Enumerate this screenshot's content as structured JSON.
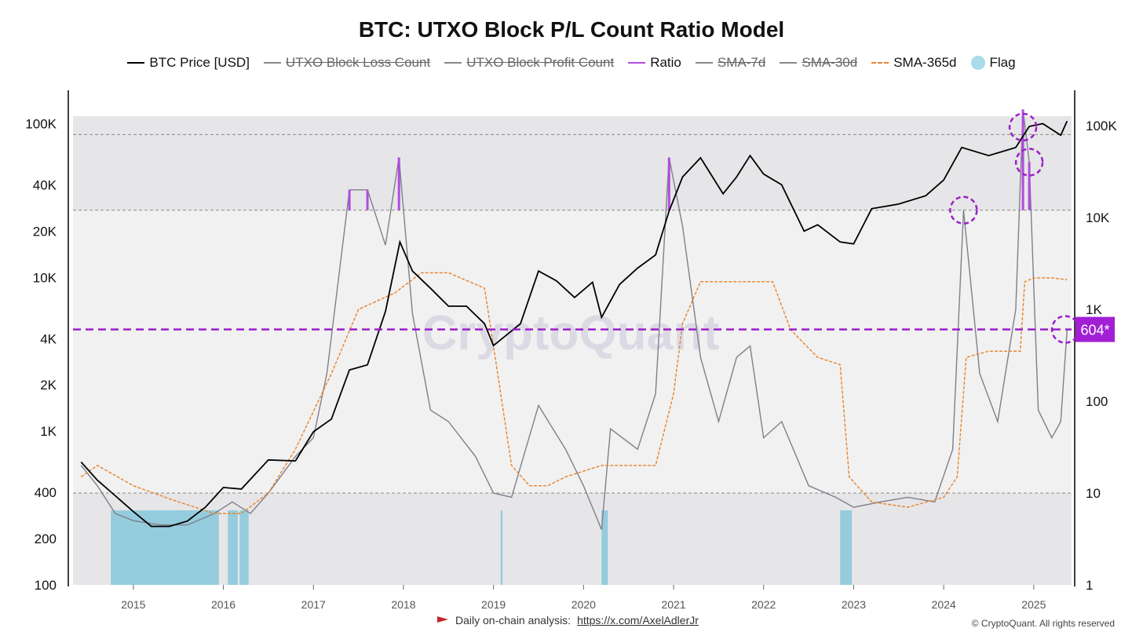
{
  "title": "BTC: UTXO Block P/L Count Ratio Model",
  "legend": [
    {
      "label": "BTC Price [USD]",
      "style": "line",
      "color": "#000000",
      "struck": false
    },
    {
      "label": "UTXO Block Loss Count",
      "style": "line",
      "color": "#888888",
      "struck": true
    },
    {
      "label": "UTXO Block Profit Count",
      "style": "line",
      "color": "#888888",
      "struck": true
    },
    {
      "label": "Ratio",
      "style": "line",
      "color": "#b24bdb",
      "struck": false
    },
    {
      "label": "SMA-7d",
      "style": "line",
      "color": "#888888",
      "struck": true
    },
    {
      "label": "SMA-30d",
      "style": "line",
      "color": "#888888",
      "struck": true
    },
    {
      "label": "SMA-365d",
      "style": "dash",
      "color": "#e8822a",
      "struck": false
    },
    {
      "label": "Flag",
      "style": "dot",
      "color": "#a9dbe9",
      "struck": false
    }
  ],
  "watermark": "CryptoQuant",
  "threshold_badge": "604*",
  "footer": {
    "text": "Daily on-chain analysis:",
    "link": "https://x.com/AxelAdlerJr",
    "flag_icon": "red-flag-icon"
  },
  "copyright": "© CryptoQuant. All rights reserved",
  "colors": {
    "price": "#000000",
    "ratio": "#b24bdb",
    "ratio_gray": "#7f7f8a",
    "sma365": "#e8822a",
    "flag": "#8cc9dc",
    "threshold": "#9b1fc9",
    "badge_bg": "#a21fd6",
    "shade_dark": "#e6e6e8",
    "shade_light": "#f1f1f1"
  },
  "chart_data": {
    "type": "line",
    "x_ticks": [
      "2015",
      "2016",
      "2017",
      "2018",
      "2019",
      "2020",
      "2021",
      "2022",
      "2023",
      "2024",
      "2025"
    ],
    "x_range": [
      "2014-05",
      "2025-05"
    ],
    "left_axis": {
      "label": "",
      "scale": "log",
      "ticks": [
        "100K",
        "40K",
        "20K",
        "10K",
        "4K",
        "2K",
        "1K",
        "400",
        "200",
        "100"
      ],
      "range": [
        100,
        120000
      ]
    },
    "right_axis": {
      "label": "",
      "scale": "log",
      "ticks": [
        "100K",
        "10K",
        "1K",
        "100",
        "10",
        "1"
      ],
      "range": [
        1,
        200000
      ]
    },
    "threshold": {
      "value": 604,
      "label": "604*"
    },
    "bands": {
      "upper_line": 80000,
      "middle_line": 12000,
      "lower_line": 10
    },
    "series": [
      {
        "name": "BTC Price [USD]",
        "axis": "left",
        "x": [
          2014.42,
          2014.6,
          2014.8,
          2015.0,
          2015.2,
          2015.4,
          2015.6,
          2015.8,
          2016.0,
          2016.2,
          2016.5,
          2016.8,
          2017.0,
          2017.2,
          2017.4,
          2017.6,
          2017.8,
          2017.96,
          2018.1,
          2018.3,
          2018.5,
          2018.7,
          2018.9,
          2019.0,
          2019.3,
          2019.5,
          2019.7,
          2019.9,
          2020.1,
          2020.2,
          2020.4,
          2020.6,
          2020.8,
          2020.95,
          2021.1,
          2021.3,
          2021.55,
          2021.7,
          2021.85,
          2022.0,
          2022.2,
          2022.45,
          2022.6,
          2022.85,
          2023.0,
          2023.2,
          2023.5,
          2023.8,
          2024.0,
          2024.2,
          2024.5,
          2024.8,
          2024.95,
          2025.1,
          2025.3,
          2025.37
        ],
        "values": [
          630,
          480,
          380,
          300,
          240,
          240,
          260,
          320,
          430,
          420,
          650,
          640,
          990,
          1200,
          2500,
          2700,
          6000,
          17000,
          11000,
          8500,
          6500,
          6500,
          5000,
          3600,
          5000,
          11000,
          9500,
          7400,
          9300,
          5500,
          9000,
          11500,
          14000,
          27000,
          45000,
          60000,
          35000,
          45000,
          62000,
          47000,
          40000,
          20000,
          22000,
          17000,
          16500,
          28000,
          30000,
          34000,
          43000,
          70000,
          62000,
          70000,
          96000,
          100000,
          84000,
          104000
        ]
      },
      {
        "name": "Ratio",
        "axis": "right",
        "x": [
          2014.42,
          2014.6,
          2014.8,
          2015.0,
          2015.3,
          2015.6,
          2015.9,
          2016.1,
          2016.3,
          2016.5,
          2016.8,
          2017.0,
          2017.15,
          2017.4,
          2017.6,
          2017.8,
          2017.95,
          2018.1,
          2018.3,
          2018.5,
          2018.8,
          2019.0,
          2019.2,
          2019.5,
          2019.8,
          2020.0,
          2020.2,
          2020.3,
          2020.6,
          2020.8,
          2020.95,
          2021.1,
          2021.3,
          2021.5,
          2021.7,
          2021.85,
          2022.0,
          2022.2,
          2022.5,
          2022.8,
          2023.0,
          2023.3,
          2023.6,
          2023.9,
          2024.1,
          2024.22,
          2024.4,
          2024.6,
          2024.8,
          2024.88,
          2024.95,
          2025.05,
          2025.2,
          2025.3,
          2025.37
        ],
        "values": [
          20,
          12,
          6,
          5,
          4.5,
          4.5,
          6,
          8,
          6,
          10,
          25,
          40,
          200,
          20000,
          20000,
          5000,
          45000,
          900,
          80,
          60,
          25,
          10,
          9,
          90,
          30,
          12,
          4,
          50,
          30,
          120,
          45000,
          8000,
          300,
          60,
          300,
          400,
          40,
          60,
          12,
          9,
          7,
          8,
          9,
          8,
          30,
          12000,
          200,
          60,
          1000,
          150000,
          40000,
          80,
          40,
          60,
          600
        ]
      },
      {
        "name": "SMA-365d",
        "axis": "right",
        "x": [
          2014.42,
          2014.6,
          2015.0,
          2015.5,
          2015.9,
          2016.2,
          2016.5,
          2016.8,
          2017.2,
          2017.5,
          2017.9,
          2018.2,
          2018.5,
          2018.9,
          2019.0,
          2019.2,
          2019.4,
          2019.6,
          2019.8,
          2020.2,
          2020.5,
          2020.8,
          2021.0,
          2021.1,
          2021.3,
          2021.6,
          2021.9,
          2022.1,
          2022.3,
          2022.6,
          2022.85,
          2022.95,
          2023.2,
          2023.6,
          2024.0,
          2024.15,
          2024.25,
          2024.5,
          2024.85,
          2024.9,
          2025.0,
          2025.2,
          2025.37
        ],
        "values": [
          15,
          20,
          12,
          8,
          6,
          6,
          10,
          30,
          200,
          1000,
          1500,
          2500,
          2500,
          1700,
          400,
          20,
          12,
          12,
          15,
          20,
          20,
          20,
          120,
          700,
          2000,
          2000,
          2000,
          2000,
          600,
          300,
          250,
          15,
          8,
          7,
          9,
          15,
          300,
          350,
          350,
          2000,
          2200,
          2200,
          2100
        ]
      }
    ],
    "flag_periods": [
      [
        "2014.75",
        "2015.95"
      ],
      [
        "2016.05",
        "2016.16"
      ],
      [
        "2016.18",
        "2016.28"
      ],
      [
        "2019.08",
        "2019.1"
      ],
      [
        "2020.2",
        "2020.27"
      ],
      [
        "2022.85",
        "2022.98"
      ]
    ],
    "highlights": [
      {
        "x": 2024.22,
        "axis": "right",
        "value": 12000
      },
      {
        "x": 2024.88,
        "axis": "left",
        "value": 95000
      },
      {
        "x": 2024.95,
        "axis": "right",
        "value": 40000
      },
      {
        "x": 2025.35,
        "axis": "right",
        "value": 604
      }
    ]
  }
}
